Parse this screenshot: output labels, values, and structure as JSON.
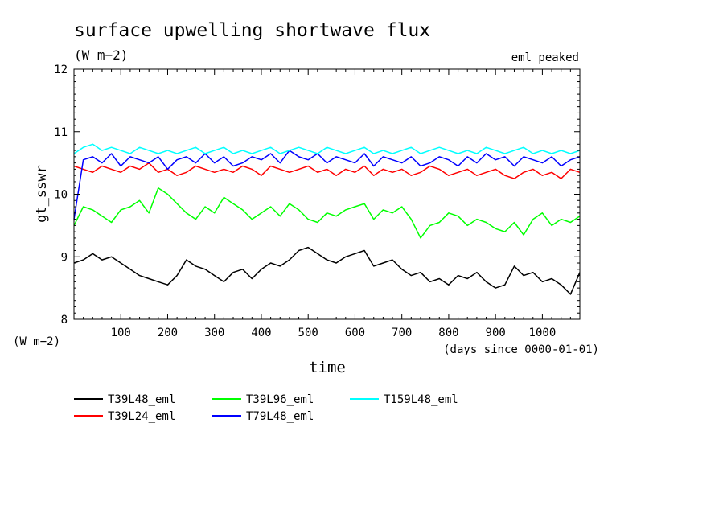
{
  "chart_data": {
    "type": "line",
    "title": "surface upwelling shortwave flux",
    "units": "(W m−2)",
    "experiment": "eml_peaked",
    "xlabel": "time",
    "xunits": "(days since 0000-01-01)",
    "ylabel": "gt_sswr",
    "yunits": "(W m−2)",
    "xlim": [
      0,
      1080
    ],
    "ylim": [
      8,
      12
    ],
    "xticks": [
      100,
      200,
      300,
      400,
      500,
      600,
      700,
      800,
      900,
      1000
    ],
    "yticks": [
      8,
      9,
      10,
      11,
      12
    ],
    "xtick_labels": [
      "100",
      "200",
      "300",
      "400",
      "500",
      "600",
      "700",
      "800",
      "900",
      "1000"
    ],
    "ytick_labels": [
      "8",
      "9",
      "10",
      "11",
      "12"
    ],
    "legend_position": "below",
    "series": [
      {
        "name": "T39L48_eml",
        "color": "#000000",
        "x": [
          0,
          20,
          40,
          60,
          80,
          100,
          120,
          140,
          160,
          180,
          200,
          220,
          240,
          260,
          280,
          300,
          320,
          340,
          360,
          380,
          400,
          420,
          440,
          460,
          480,
          500,
          520,
          540,
          560,
          580,
          600,
          620,
          640,
          660,
          680,
          700,
          720,
          740,
          760,
          780,
          800,
          820,
          840,
          860,
          880,
          900,
          920,
          940,
          960,
          980,
          1000,
          1020,
          1040,
          1060,
          1080
        ],
        "values": [
          8.9,
          8.95,
          9.05,
          8.95,
          9.0,
          8.9,
          8.8,
          8.7,
          8.65,
          8.6,
          8.55,
          8.7,
          8.95,
          8.85,
          8.8,
          8.7,
          8.6,
          8.75,
          8.8,
          8.65,
          8.8,
          8.9,
          8.85,
          8.95,
          9.1,
          9.15,
          9.05,
          8.95,
          8.9,
          9.0,
          9.05,
          9.1,
          8.85,
          8.9,
          8.95,
          8.8,
          8.7,
          8.75,
          8.6,
          8.65,
          8.55,
          8.7,
          8.65,
          8.75,
          8.6,
          8.5,
          8.55,
          8.85,
          8.7,
          8.75,
          8.6,
          8.65,
          8.55,
          8.4,
          8.75
        ]
      },
      {
        "name": "T39L96_eml",
        "color": "#00ff00",
        "x": [
          0,
          20,
          40,
          60,
          80,
          100,
          120,
          140,
          160,
          180,
          200,
          220,
          240,
          260,
          280,
          300,
          320,
          340,
          360,
          380,
          400,
          420,
          440,
          460,
          480,
          500,
          520,
          540,
          560,
          580,
          600,
          620,
          640,
          660,
          680,
          700,
          720,
          740,
          760,
          780,
          800,
          820,
          840,
          860,
          880,
          900,
          920,
          940,
          960,
          980,
          1000,
          1020,
          1040,
          1060,
          1080
        ],
        "values": [
          9.5,
          9.8,
          9.75,
          9.65,
          9.55,
          9.75,
          9.8,
          9.9,
          9.7,
          10.1,
          10.0,
          9.85,
          9.7,
          9.6,
          9.8,
          9.7,
          9.95,
          9.85,
          9.75,
          9.6,
          9.7,
          9.8,
          9.65,
          9.85,
          9.75,
          9.6,
          9.55,
          9.7,
          9.65,
          9.75,
          9.8,
          9.85,
          9.6,
          9.75,
          9.7,
          9.8,
          9.6,
          9.3,
          9.5,
          9.55,
          9.7,
          9.65,
          9.5,
          9.6,
          9.55,
          9.45,
          9.4,
          9.55,
          9.35,
          9.6,
          9.7,
          9.5,
          9.6,
          9.55,
          9.65
        ]
      },
      {
        "name": "T39L24_eml",
        "color": "#ff0000",
        "x": [
          0,
          20,
          40,
          60,
          80,
          100,
          120,
          140,
          160,
          180,
          200,
          220,
          240,
          260,
          280,
          300,
          320,
          340,
          360,
          380,
          400,
          420,
          440,
          460,
          480,
          500,
          520,
          540,
          560,
          580,
          600,
          620,
          640,
          660,
          680,
          700,
          720,
          740,
          760,
          780,
          800,
          820,
          840,
          860,
          880,
          900,
          920,
          940,
          960,
          980,
          1000,
          1020,
          1040,
          1060,
          1080
        ],
        "values": [
          10.45,
          10.4,
          10.35,
          10.45,
          10.4,
          10.35,
          10.45,
          10.4,
          10.5,
          10.35,
          10.4,
          10.3,
          10.35,
          10.45,
          10.4,
          10.35,
          10.4,
          10.35,
          10.45,
          10.4,
          10.3,
          10.45,
          10.4,
          10.35,
          10.4,
          10.45,
          10.35,
          10.4,
          10.3,
          10.4,
          10.35,
          10.45,
          10.3,
          10.4,
          10.35,
          10.4,
          10.3,
          10.35,
          10.45,
          10.4,
          10.3,
          10.35,
          10.4,
          10.3,
          10.35,
          10.4,
          10.3,
          10.25,
          10.35,
          10.4,
          10.3,
          10.35,
          10.25,
          10.4,
          10.35
        ]
      },
      {
        "name": "T79L48_eml",
        "color": "#0000ff",
        "x": [
          0,
          20,
          40,
          60,
          80,
          100,
          120,
          140,
          160,
          180,
          200,
          220,
          240,
          260,
          280,
          300,
          320,
          340,
          360,
          380,
          400,
          420,
          440,
          460,
          480,
          500,
          520,
          540,
          560,
          580,
          600,
          620,
          640,
          660,
          680,
          700,
          720,
          740,
          760,
          780,
          800,
          820,
          840,
          860,
          880,
          900,
          920,
          940,
          960,
          980,
          1000,
          1020,
          1040,
          1060,
          1080
        ],
        "values": [
          9.6,
          10.55,
          10.6,
          10.5,
          10.65,
          10.45,
          10.6,
          10.55,
          10.5,
          10.6,
          10.4,
          10.55,
          10.6,
          10.5,
          10.65,
          10.5,
          10.6,
          10.45,
          10.5,
          10.6,
          10.55,
          10.65,
          10.5,
          10.7,
          10.6,
          10.55,
          10.65,
          10.5,
          10.6,
          10.55,
          10.5,
          10.65,
          10.45,
          10.6,
          10.55,
          10.5,
          10.6,
          10.45,
          10.5,
          10.6,
          10.55,
          10.45,
          10.6,
          10.5,
          10.65,
          10.55,
          10.6,
          10.45,
          10.6,
          10.55,
          10.5,
          10.6,
          10.45,
          10.55,
          10.6
        ]
      },
      {
        "name": "T159L48_eml",
        "color": "#00ffff",
        "x": [
          0,
          20,
          40,
          60,
          80,
          100,
          120,
          140,
          160,
          180,
          200,
          220,
          240,
          260,
          280,
          300,
          320,
          340,
          360,
          380,
          400,
          420,
          440,
          460,
          480,
          500,
          520,
          540,
          560,
          580,
          600,
          620,
          640,
          660,
          680,
          700,
          720,
          740,
          760,
          780,
          800,
          820,
          840,
          860,
          880,
          900,
          920,
          940,
          960,
          980,
          1000,
          1020,
          1040,
          1060,
          1080
        ],
        "values": [
          10.65,
          10.75,
          10.8,
          10.7,
          10.75,
          10.7,
          10.65,
          10.75,
          10.7,
          10.65,
          10.7,
          10.65,
          10.7,
          10.75,
          10.65,
          10.7,
          10.75,
          10.65,
          10.7,
          10.65,
          10.7,
          10.75,
          10.65,
          10.7,
          10.75,
          10.7,
          10.65,
          10.75,
          10.7,
          10.65,
          10.7,
          10.75,
          10.65,
          10.7,
          10.65,
          10.7,
          10.75,
          10.65,
          10.7,
          10.75,
          10.7,
          10.65,
          10.7,
          10.65,
          10.75,
          10.7,
          10.65,
          10.7,
          10.75,
          10.65,
          10.7,
          10.65,
          10.7,
          10.65,
          10.7
        ]
      }
    ]
  }
}
